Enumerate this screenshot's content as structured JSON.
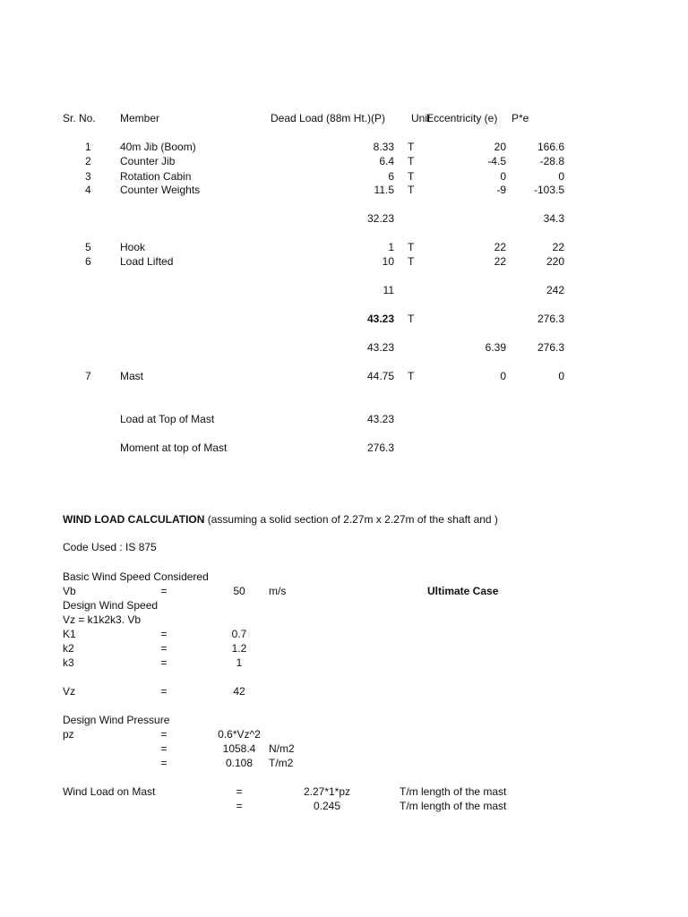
{
  "table": {
    "headers": {
      "sr": "Sr. No.",
      "member": "Member",
      "dead_load": "Dead Load (88m Ht.)(P)",
      "unit": "Unit",
      "ecc": "Eccentricity (e)",
      "pe": "P*e"
    },
    "rows": [
      {
        "sr": "1",
        "member": "40m Jib (Boom)",
        "load": "8.33",
        "unit": "T",
        "ecc": "20",
        "pe": "166.6"
      },
      {
        "sr": "2",
        "member": "Counter Jib",
        "load": "6.4",
        "unit": "T",
        "ecc": "-4.5",
        "pe": "-28.8"
      },
      {
        "sr": "3",
        "member": "Rotation Cabin",
        "load": "6",
        "unit": "T",
        "ecc": "0",
        "pe": "0"
      },
      {
        "sr": "4",
        "member": "Counter Weights",
        "load": "11.5",
        "unit": "T",
        "ecc": "-9",
        "pe": "-103.5"
      },
      {
        "sr": "5",
        "member": "Hook",
        "load": "1",
        "unit": "T",
        "ecc": "22",
        "pe": "22"
      },
      {
        "sr": "6",
        "member": "Load Lifted",
        "load": "10",
        "unit": "T",
        "ecc": "22",
        "pe": "220"
      },
      {
        "sr": "7",
        "member": "Mast",
        "load": "44.75",
        "unit": "T",
        "ecc": "0",
        "pe": "0"
      }
    ],
    "subtotal1": {
      "load": "32.23",
      "pe": "34.3"
    },
    "subtotal2": {
      "load": "11",
      "pe": "242"
    },
    "total": {
      "load": "43.23",
      "unit": "T",
      "pe": "276.3"
    },
    "total2": {
      "load": "43.23",
      "ecc": "6.39",
      "pe": "276.3"
    },
    "load_top": {
      "label": "Load at Top of Mast",
      "value": "43.23"
    },
    "moment_top": {
      "label": "Moment at top of Mast",
      "value": "276.3"
    }
  },
  "wind": {
    "title": "WIND LOAD CALCULATION",
    "title_note": " (assuming a solid section of 2.27m x 2.27m of the shaft and )",
    "code": "Code Used : IS 875",
    "basic_speed": "Basic Wind Speed Considered",
    "vb": {
      "label": "Vb",
      "eq": "=",
      "value": "50",
      "unit": "m/s"
    },
    "ultimate": "Ultimate Case",
    "design_speed": "Design Wind Speed",
    "formula": "Vz = k1k2k3. Vb",
    "k1": {
      "label": "K1",
      "eq": "=",
      "value": "0.7"
    },
    "k2": {
      "label": "k2",
      "eq": "=",
      "value": "1.2"
    },
    "k3": {
      "label": "k3",
      "eq": "=",
      "value": "1"
    },
    "vz": {
      "label": "Vz",
      "eq": "=",
      "value": "42"
    },
    "pressure": "Design Wind Pressure",
    "pz": {
      "label": "pz",
      "eq": "=",
      "value": "0.6*Vz^2"
    },
    "pz2": {
      "eq": "=",
      "value": "1058.4",
      "unit": "N/m2"
    },
    "pz3": {
      "eq": "=",
      "value": "0.108",
      "unit": "T/m2"
    },
    "mast": {
      "label": "Wind Load on Mast",
      "eq": "=",
      "value": "2.27*1*pz",
      "unit": "T/m length of the mast"
    },
    "mast2": {
      "eq": "=",
      "value": "0.245",
      "unit": "T/m length of the mast"
    }
  }
}
